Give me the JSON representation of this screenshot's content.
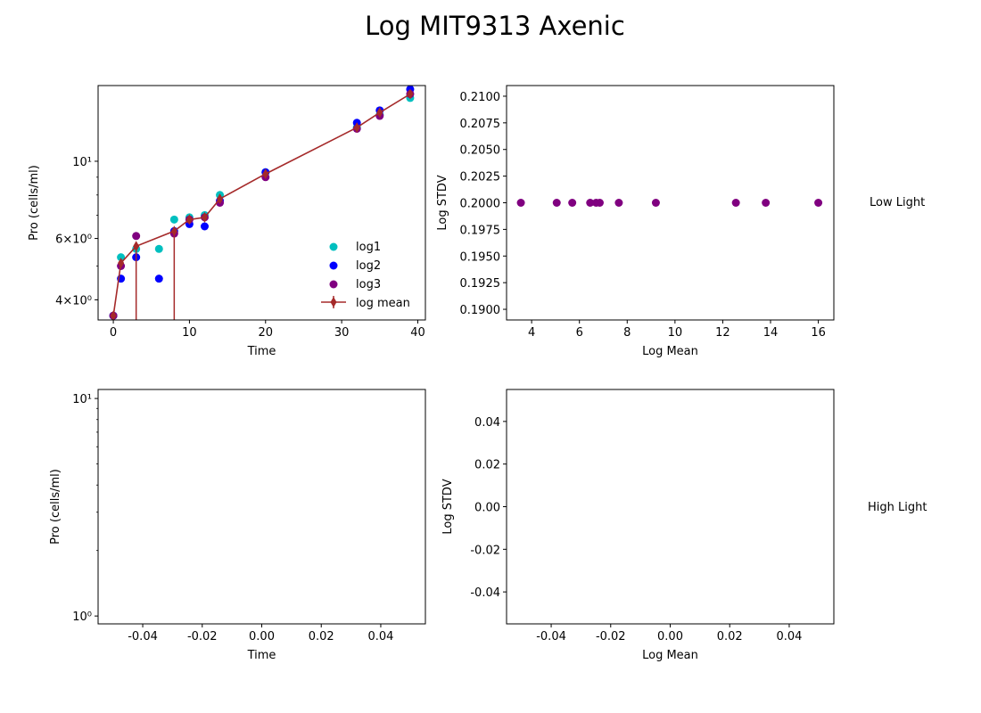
{
  "title": "Log MIT9313 Axenic",
  "row_labels": [
    "Low Light",
    "High Light"
  ],
  "colors": {
    "log1": "#00bfbf",
    "log2": "#0000ff",
    "log3": "#800080",
    "log_mean": "#a52a2a"
  },
  "chart_data": [
    {
      "type": "scatter",
      "panel": "low-light-growth",
      "xlabel": "Time",
      "ylabel": "Pro (cells/ml)",
      "xlim": [
        -2,
        41
      ],
      "ylim": [
        3.5,
        16.5
      ],
      "yscale": "log",
      "x_ticks": [
        0,
        10,
        20,
        30,
        40
      ],
      "y_ticks": [
        {
          "value": 4,
          "label": "4×10⁰"
        },
        {
          "value": 6,
          "label": "6×10⁰"
        },
        {
          "value": 10,
          "label": "10¹"
        }
      ],
      "legend": {
        "position": "lower-right",
        "entries": [
          "log1",
          "log2",
          " log3",
          "log mean"
        ]
      },
      "series": [
        {
          "name": "log1",
          "kind": "scatter",
          "x": [
            0,
            1,
            3,
            6,
            8,
            10,
            12,
            14,
            20,
            32,
            35,
            39
          ],
          "y": [
            3.6,
            5.3,
            5.6,
            5.6,
            6.8,
            6.9,
            7.0,
            8.0,
            9.3,
            12.5,
            13.6,
            15.2
          ]
        },
        {
          "name": "log2",
          "kind": "scatter",
          "x": [
            0,
            1,
            3,
            6,
            8,
            10,
            12,
            14,
            20,
            32,
            35,
            39
          ],
          "y": [
            3.6,
            4.6,
            5.3,
            4.6,
            6.3,
            6.6,
            6.5,
            7.7,
            9.3,
            12.9,
            14.0,
            16.1
          ]
        },
        {
          "name": " log3",
          "kind": "scatter",
          "x": [
            0,
            1,
            3,
            8,
            10,
            12,
            14,
            20,
            32,
            35,
            39
          ],
          "y": [
            3.6,
            5.0,
            6.1,
            6.2,
            6.8,
            6.9,
            7.6,
            9.0,
            12.4,
            13.5,
            15.6
          ]
        },
        {
          "name": "log mean",
          "kind": "line-errorbar",
          "x": [
            0,
            1,
            3,
            8,
            10,
            12,
            14,
            20,
            32,
            35,
            39
          ],
          "y": [
            3.6,
            5.1,
            5.7,
            6.3,
            6.8,
            6.9,
            7.8,
            9.2,
            12.5,
            13.8,
            15.6
          ]
        }
      ]
    },
    {
      "type": "scatter",
      "panel": "low-light-stdv",
      "xlabel": "Log Mean",
      "ylabel": "Log STDV",
      "xlim": [
        2.95,
        16.65
      ],
      "ylim": [
        0.189,
        0.211
      ],
      "x_ticks": [
        4,
        6,
        8,
        10,
        12,
        14,
        16
      ],
      "y_ticks": [
        0.19,
        0.1925,
        0.195,
        0.1975,
        0.2,
        0.2025,
        0.205,
        0.2075,
        0.21
      ],
      "series": [
        {
          "kind": "scatter",
          "x": [
            3.55,
            5.05,
            5.7,
            6.45,
            6.7,
            6.85,
            7.65,
            9.2,
            12.55,
            13.8,
            16.0
          ],
          "y": [
            0.2,
            0.2,
            0.2,
            0.2,
            0.2,
            0.2,
            0.2,
            0.2,
            0.2,
            0.2,
            0.2
          ]
        }
      ]
    },
    {
      "type": "scatter",
      "panel": "high-light-growth",
      "xlabel": "Time",
      "ylabel": "Pro (cells/ml)",
      "xlim": [
        -0.055,
        0.055
      ],
      "ylim": [
        0.92,
        11
      ],
      "yscale": "log",
      "x_ticks": [
        -0.04,
        -0.02,
        0.0,
        0.02,
        0.04
      ],
      "y_ticks": [
        {
          "value": 1,
          "label": "10⁰"
        },
        {
          "value": 10,
          "label": "10¹"
        }
      ],
      "series": []
    },
    {
      "type": "scatter",
      "panel": "high-light-stdv",
      "xlabel": "Log Mean",
      "ylabel": "Log STDV",
      "xlim": [
        -0.055,
        0.055
      ],
      "ylim": [
        -0.055,
        0.055
      ],
      "x_ticks": [
        -0.04,
        -0.02,
        0.0,
        0.02,
        0.04
      ],
      "y_ticks": [
        -0.04,
        -0.02,
        0.0,
        0.02,
        0.04
      ],
      "series": []
    }
  ]
}
